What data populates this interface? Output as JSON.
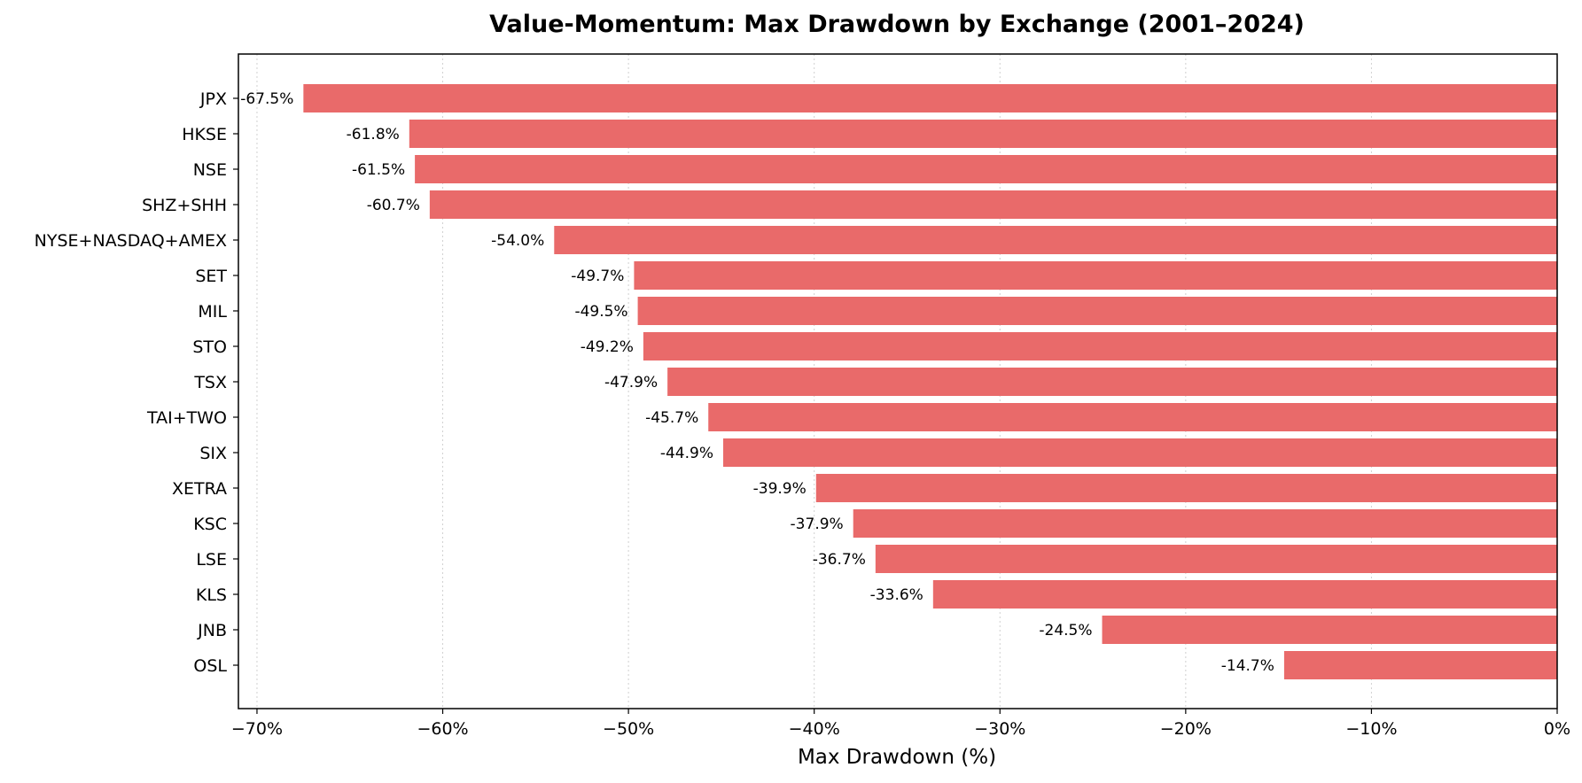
{
  "chart_data": {
    "type": "bar",
    "orientation": "horizontal",
    "title": "Value-Momentum: Max Drawdown by Exchange (2001–2024)",
    "xlabel": "Max Drawdown (%)",
    "ylabel": "",
    "xlim": [
      -71,
      0
    ],
    "x_ticks": [
      -70,
      -60,
      -50,
      -40,
      -30,
      -20,
      -10,
      0
    ],
    "x_tick_labels": [
      "−70%",
      "−60%",
      "−50%",
      "−40%",
      "−30%",
      "−20%",
      "−10%",
      "0%"
    ],
    "grid": "vertical-dotted",
    "bar_color": "#e96a6a",
    "categories": [
      "JPX",
      "HKSE",
      "NSE",
      "SHZ+SHH",
      "NYSE+NASDAQ+AMEX",
      "SET",
      "MIL",
      "STO",
      "TSX",
      "TAI+TWO",
      "SIX",
      "XETRA",
      "KSC",
      "LSE",
      "KLS",
      "JNB",
      "OSL"
    ],
    "values": [
      -67.5,
      -61.8,
      -61.5,
      -60.7,
      -54.0,
      -49.7,
      -49.5,
      -49.2,
      -47.9,
      -45.7,
      -44.9,
      -39.9,
      -37.9,
      -36.7,
      -33.6,
      -24.5,
      -14.7
    ],
    "data_labels": [
      "-67.5%",
      "-61.8%",
      "-61.5%",
      "-60.7%",
      "-54.0%",
      "-49.7%",
      "-49.5%",
      "-49.2%",
      "-47.9%",
      "-45.7%",
      "-44.9%",
      "-39.9%",
      "-37.9%",
      "-36.7%",
      "-33.6%",
      "-24.5%",
      "-14.7%"
    ]
  }
}
